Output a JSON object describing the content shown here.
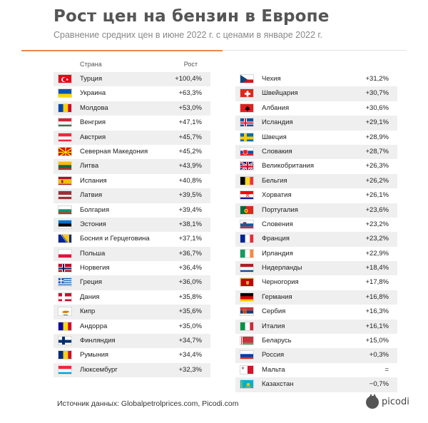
{
  "header": {
    "title": "Рост цен на бензин в Европе",
    "subtitle": "Сравнение средних цен в июне 2022 г. с ценами в январе 2022 г."
  },
  "table_header": {
    "country": "Страна",
    "growth": "Рост"
  },
  "left_rows": [
    {
      "country": "Турция",
      "value": "+100,4%",
      "flag": {
        "type": "turkey"
      }
    },
    {
      "country": "Украина",
      "value": "+63,3%",
      "flag": {
        "type": "h",
        "c": [
          "#0057b7",
          "#ffd700"
        ]
      }
    },
    {
      "country": "Молдова",
      "value": "+53,0%",
      "flag": {
        "type": "v",
        "c": [
          "#0046ae",
          "#ffd200",
          "#cc092f"
        ]
      }
    },
    {
      "country": "Венгрия",
      "value": "+47,1%",
      "flag": {
        "type": "h",
        "c": [
          "#ce2939",
          "#ffffff",
          "#477050"
        ]
      }
    },
    {
      "country": "Австрия",
      "value": "+45,7%",
      "flag": {
        "type": "h",
        "c": [
          "#ed2939",
          "#ffffff",
          "#ed2939"
        ]
      }
    },
    {
      "country": "Северная Македония",
      "value": "+45,2%",
      "flag": {
        "type": "macedonia"
      }
    },
    {
      "country": "Литва",
      "value": "+43,9%",
      "flag": {
        "type": "h",
        "c": [
          "#fdb913",
          "#006a44",
          "#c1272d"
        ]
      }
    },
    {
      "country": "Испания",
      "value": "+40,8%",
      "flag": {
        "type": "spain"
      }
    },
    {
      "country": "Латвия",
      "value": "+39,5%",
      "flag": {
        "type": "latvia"
      }
    },
    {
      "country": "Болгария",
      "value": "+39,4%",
      "flag": {
        "type": "h",
        "c": [
          "#ffffff",
          "#00966e",
          "#d62612"
        ]
      }
    },
    {
      "country": "Эстония",
      "value": "+38,1%",
      "flag": {
        "type": "h",
        "c": [
          "#0072ce",
          "#000000",
          "#ffffff"
        ]
      }
    },
    {
      "country": "Босния и Герцеговина",
      "value": "+37,1%",
      "flag": {
        "type": "bosnia"
      }
    },
    {
      "country": "Польша",
      "value": "+36,7%",
      "flag": {
        "type": "h",
        "c": [
          "#ffffff",
          "#dc143c"
        ]
      }
    },
    {
      "country": "Норвегия",
      "value": "+36,4%",
      "flag": {
        "type": "nordic",
        "c": [
          "#ba0c2f",
          "#ffffff",
          "#00205b"
        ]
      }
    },
    {
      "country": "Греция",
      "value": "+36,0%",
      "flag": {
        "type": "greece"
      }
    },
    {
      "country": "Дания",
      "value": "+35,8%",
      "flag": {
        "type": "nordic",
        "c": [
          "#c8102e",
          "#ffffff"
        ]
      }
    },
    {
      "country": "Кипр",
      "value": "+35,6%",
      "flag": {
        "type": "cyprus"
      }
    },
    {
      "country": "Андорра",
      "value": "+35,0%",
      "flag": {
        "type": "v",
        "c": [
          "#10069f",
          "#fedd00",
          "#d50032"
        ]
      }
    },
    {
      "country": "Финляндия",
      "value": "+34,7%",
      "flag": {
        "type": "nordic",
        "c": [
          "#ffffff",
          "#002f6c"
        ]
      }
    },
    {
      "country": "Румыния",
      "value": "+34,4%",
      "flag": {
        "type": "v",
        "c": [
          "#002b7f",
          "#fcd116",
          "#ce1126"
        ]
      }
    },
    {
      "country": "Люксембург",
      "value": "+32,3%",
      "flag": {
        "type": "h",
        "c": [
          "#ed2939",
          "#ffffff",
          "#00a1de"
        ]
      }
    }
  ],
  "right_rows": [
    {
      "country": "Чехия",
      "value": "+31,2%",
      "flag": {
        "type": "czech"
      }
    },
    {
      "country": "Швейцария",
      "value": "+30,7%",
      "flag": {
        "type": "swiss"
      }
    },
    {
      "country": "Албания",
      "value": "+30,6%",
      "flag": {
        "type": "albania"
      }
    },
    {
      "country": "Исландия",
      "value": "+29,1%",
      "flag": {
        "type": "nordic",
        "c": [
          "#02529c",
          "#ffffff",
          "#dc1e35"
        ]
      }
    },
    {
      "country": "Швеция",
      "value": "+28,9%",
      "flag": {
        "type": "nordic",
        "c": [
          "#006aa7",
          "#fecc00"
        ]
      }
    },
    {
      "country": "Словакия",
      "value": "+28,7%",
      "flag": {
        "type": "slovakia"
      }
    },
    {
      "country": "Великобритания",
      "value": "+26,3%",
      "flag": {
        "type": "uk"
      }
    },
    {
      "country": "Бельгия",
      "value": "+26,2%",
      "flag": {
        "type": "v",
        "c": [
          "#000000",
          "#fdda24",
          "#ef3340"
        ]
      }
    },
    {
      "country": "Хорватия",
      "value": "+26,1%",
      "flag": {
        "type": "croatia"
      }
    },
    {
      "country": "Португалия",
      "value": "+23,6%",
      "flag": {
        "type": "portugal"
      }
    },
    {
      "country": "Словения",
      "value": "+23,2%",
      "flag": {
        "type": "slovenia"
      }
    },
    {
      "country": "Франция",
      "value": "+23,2%",
      "flag": {
        "type": "v",
        "c": [
          "#002395",
          "#ffffff",
          "#ed2939"
        ]
      }
    },
    {
      "country": "Ирландия",
      "value": "+22,9%",
      "flag": {
        "type": "v",
        "c": [
          "#169b62",
          "#ffffff",
          "#ff883e"
        ]
      }
    },
    {
      "country": "Нидерланды",
      "value": "+18,4%",
      "flag": {
        "type": "h",
        "c": [
          "#ae1c28",
          "#ffffff",
          "#21468b"
        ]
      }
    },
    {
      "country": "Черногория",
      "value": "+17,8%",
      "flag": {
        "type": "montenegro"
      }
    },
    {
      "country": "Германия",
      "value": "+16,8%",
      "flag": {
        "type": "h",
        "c": [
          "#000000",
          "#dd0000",
          "#ffce00"
        ]
      }
    },
    {
      "country": "Сербия",
      "value": "+16,3%",
      "flag": {
        "type": "serbia"
      }
    },
    {
      "country": "Италия",
      "value": "+16,1%",
      "flag": {
        "type": "v",
        "c": [
          "#009246",
          "#ffffff",
          "#ce2b37"
        ]
      }
    },
    {
      "country": "Беларусь",
      "value": "+15,0%",
      "flag": {
        "type": "belarus"
      }
    },
    {
      "country": "Россия",
      "value": "+0,3%",
      "flag": {
        "type": "h",
        "c": [
          "#ffffff",
          "#0039a6",
          "#d52b1e"
        ]
      }
    },
    {
      "country": "Мальта",
      "value": "=",
      "flag": {
        "type": "malta"
      }
    },
    {
      "country": "Казахстан",
      "value": "−0,7%",
      "flag": {
        "type": "kazakhstan"
      }
    }
  ],
  "footer": {
    "source": "Источник данных: Globalpetrolprices.com, Picodi.com",
    "logo_text": "picodi"
  },
  "colors": {
    "accent": "#e8894a",
    "stripe": "#efefef",
    "title": "#555555"
  }
}
